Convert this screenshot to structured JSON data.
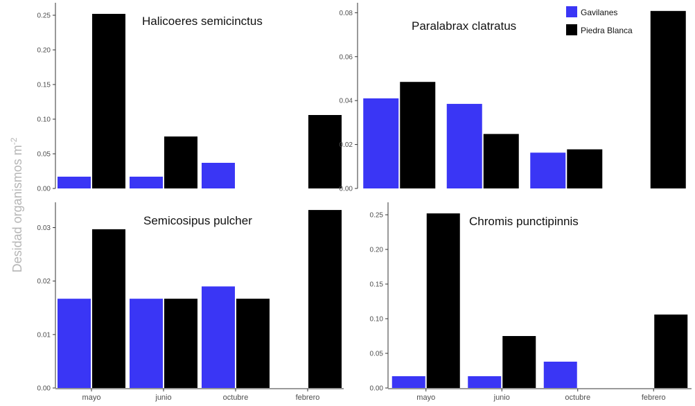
{
  "ylabel": "Desidad organismos m",
  "ylabel_sup": "-2",
  "legend": [
    {
      "label": "Gavilanes",
      "color": "#3a36f5"
    },
    {
      "label": "Piedra Blanca",
      "color": "#000000"
    }
  ],
  "chart_data": [
    {
      "type": "bar",
      "title": "Halicoeres  semicinctus",
      "categories": [
        "mayo",
        "junio",
        "octubre",
        "febrero"
      ],
      "series": [
        {
          "name": "Gavilanes",
          "values": [
            0.017,
            0.017,
            0.037,
            0
          ]
        },
        {
          "name": "Piedra Blanca",
          "values": [
            0.252,
            0.075,
            0,
            0.106
          ]
        }
      ],
      "yticks": [
        "0.00",
        "0.05",
        "0.10",
        "0.15",
        "0.20",
        "0.25"
      ],
      "ylim": [
        0,
        0.26
      ]
    },
    {
      "type": "bar",
      "title": "Paralabrax clatratus",
      "categories": [
        "mayo",
        "junio",
        "octubre",
        "febrero"
      ],
      "series": [
        {
          "name": "Gavilanes",
          "values": [
            0.041,
            0.0385,
            0.0163,
            0
          ]
        },
        {
          "name": "Piedra Blanca",
          "values": [
            0.0485,
            0.0248,
            0.0178,
            0.0808
          ]
        }
      ],
      "yticks": [
        "0.00",
        "0.02",
        "0.04",
        "0.06",
        "0.08"
      ],
      "ylim": [
        0,
        0.082
      ]
    },
    {
      "type": "bar",
      "title": "Semicosipus pulcher",
      "categories": [
        "mayo",
        "junio",
        "octubre",
        "febrero"
      ],
      "series": [
        {
          "name": "Gavilanes",
          "values": [
            0.0167,
            0.0167,
            0.019,
            0
          ]
        },
        {
          "name": "Piedra Blanca",
          "values": [
            0.0297,
            0.0167,
            0.0167,
            0.0333
          ]
        }
      ],
      "yticks": [
        "0.00",
        "0.01",
        "0.02",
        "0.03"
      ],
      "ylim": [
        0,
        0.0337
      ]
    },
    {
      "type": "bar",
      "title": "Chromis punctipinnis",
      "categories": [
        "mayo",
        "junio",
        "octubre",
        "febrero"
      ],
      "series": [
        {
          "name": "Gavilanes",
          "values": [
            0.017,
            0.017,
            0.038,
            0
          ]
        },
        {
          "name": "Piedra Blanca",
          "values": [
            0.252,
            0.075,
            0,
            0.106
          ]
        }
      ],
      "yticks": [
        "0.00",
        "0.05",
        "0.10",
        "0.15",
        "0.20",
        "0.25"
      ],
      "ylim": [
        0,
        0.26
      ]
    }
  ]
}
